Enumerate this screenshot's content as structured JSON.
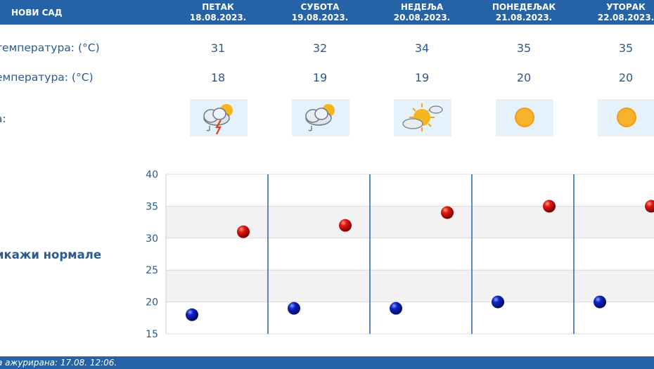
{
  "header": {
    "city": "НОВИ САД",
    "days": [
      {
        "name": "ПЕТАК",
        "date": "18.08.2023."
      },
      {
        "name": "СУБОТА",
        "date": "19.08.2023."
      },
      {
        "name": "НЕДЕЉА",
        "date": "20.08.2023."
      },
      {
        "name": "ПОНЕДЕЉАК",
        "date": "21.08.2023."
      },
      {
        "name": "УТОРАК",
        "date": "22.08.2023."
      }
    ]
  },
  "rows": {
    "max_label": "температура: (°C)",
    "min_label": "емпература: (°C)",
    "icon_label": "а:"
  },
  "max_temps": [
    "31",
    "32",
    "34",
    "35",
    "35"
  ],
  "min_temps": [
    "18",
    "19",
    "19",
    "20",
    "20"
  ],
  "icons": [
    "thunderstorm-partly-cloudy-icon",
    "rain-partly-cloudy-icon",
    "sun-and-clouds-icon",
    "sunny-icon",
    "sunny-icon"
  ],
  "normals_link": "икажи нормале",
  "footer": {
    "updated": "а ажурирана:  17.08.  12:06."
  },
  "colors": {
    "header_bg": "#2563a6",
    "max_marker": "#cc0000",
    "min_marker": "#0a1fa8",
    "text": "#2a5a8f"
  },
  "chart_data": {
    "type": "scatter",
    "categories": [
      "ПЕТАК",
      "СУБОТА",
      "НЕДЕЉА",
      "ПОНЕДЕЉАК",
      "УТОРАК"
    ],
    "series": [
      {
        "values": [
          31,
          32,
          34,
          35,
          35
        ]
      },
      {
        "values": [
          18,
          19,
          19,
          20,
          20
        ]
      }
    ],
    "ylim": [
      15,
      40
    ],
    "yticks": [
      "15",
      "20",
      "25",
      "30",
      "35",
      "40"
    ],
    "grid": true
  }
}
